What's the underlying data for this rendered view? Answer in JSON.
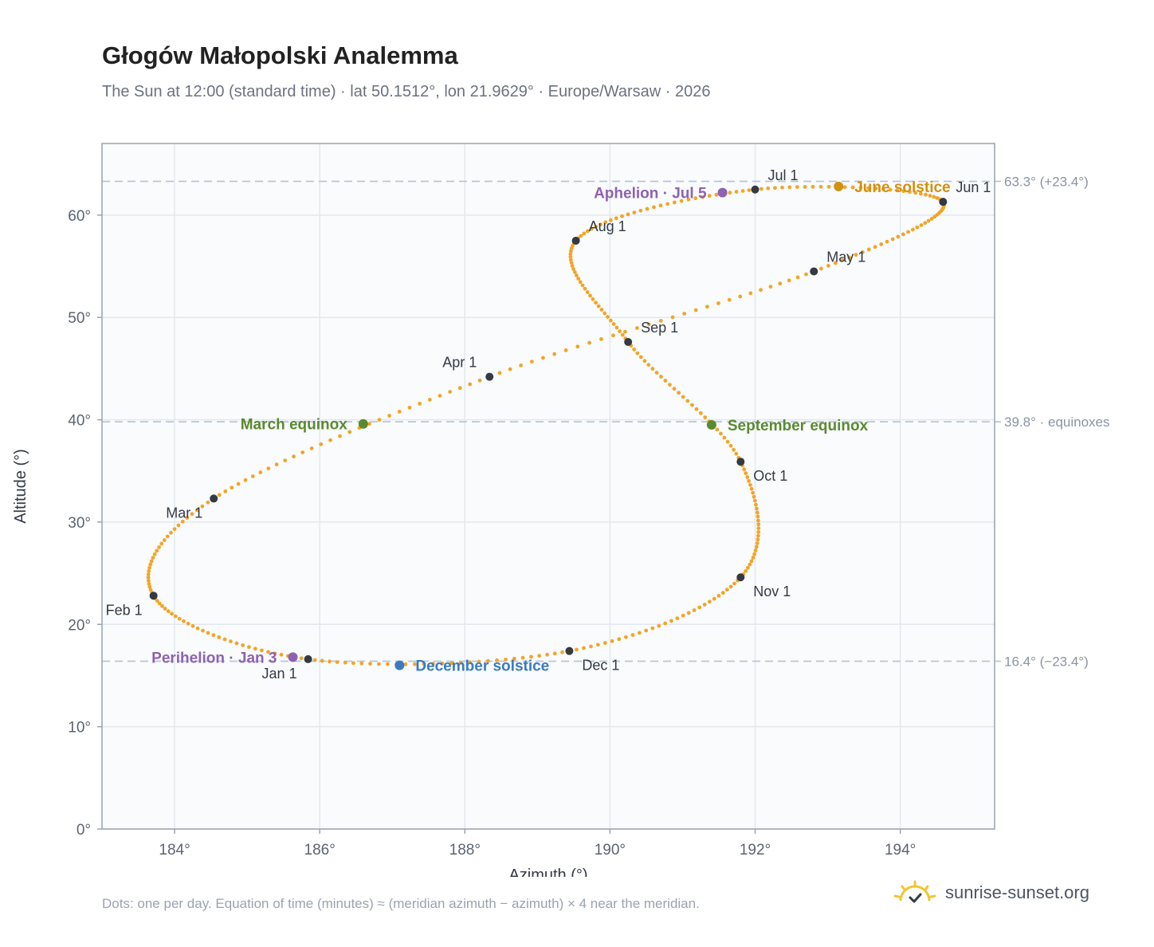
{
  "title": "Głogów Małopolski Analemma",
  "subtitle": "The Sun at 12:00 (standard time) · lat 50.1512°, lon 21.9629° · Europe/Warsaw · 2026",
  "footnote": "Dots: one per day. Equation of time (minutes) ≈ (meridian azimuth − azimuth) × 4 near the meridian.",
  "brand": {
    "text": "sunrise-sunset.org",
    "icon": "sun-logo-icon"
  },
  "colors": {
    "path": "#f2a528",
    "month_marker": "#333a44",
    "solstice_june": "#d4900f",
    "solstice_december": "#3a7bc0",
    "equinox": "#5a8a2f",
    "apsis": "#8e62b1",
    "reference_line": "#b9c6d4",
    "grid": "#e3e8ee",
    "plot_bg": "#f9fbfd",
    "frame": "#9aa3af"
  },
  "chart_data": {
    "type": "scatter",
    "title": "Głogów Małopolski Analemma",
    "xlabel": "Azimuth (°)",
    "ylabel": "Altitude (°)",
    "xlim": [
      183,
      195.3
    ],
    "ylim": [
      0,
      67
    ],
    "x_ticks": [
      {
        "value": 184,
        "label": "184°"
      },
      {
        "value": 186,
        "label": "186°"
      },
      {
        "value": 188,
        "label": "188°"
      },
      {
        "value": 190,
        "label": "190°"
      },
      {
        "value": 192,
        "label": "192°"
      },
      {
        "value": 194,
        "label": "194°"
      }
    ],
    "y_ticks": [
      {
        "value": 0,
        "label": "0°"
      },
      {
        "value": 10,
        "label": "10°"
      },
      {
        "value": 20,
        "label": "20°"
      },
      {
        "value": 30,
        "label": "30°"
      },
      {
        "value": 40,
        "label": "40°"
      },
      {
        "value": 50,
        "label": "50°"
      },
      {
        "value": 60,
        "label": "60°"
      }
    ],
    "grid": true,
    "reference_lines": [
      {
        "y": 63.3,
        "label": "63.3° (+23.4°)"
      },
      {
        "y": 39.8,
        "label": "39.8° · equinoxes"
      },
      {
        "y": 16.4,
        "label": "16.4° (−23.4°)"
      }
    ],
    "path_anchors": [
      {
        "date": "Jan 1",
        "x": 185.84,
        "y": 16.6
      },
      {
        "date": "Feb 1",
        "x": 183.71,
        "y": 22.8
      },
      {
        "date": "Mar 1",
        "x": 184.54,
        "y": 32.3
      },
      {
        "date": "Apr 1",
        "x": 188.34,
        "y": 44.2
      },
      {
        "date": "May 1",
        "x": 192.81,
        "y": 54.5
      },
      {
        "date": "Jun 1",
        "x": 194.59,
        "y": 61.3
      },
      {
        "date": "Jul 1",
        "x": 192.0,
        "y": 62.5
      },
      {
        "date": "Aug 1",
        "x": 189.53,
        "y": 57.5
      },
      {
        "date": "Sep 1",
        "x": 190.25,
        "y": 47.6
      },
      {
        "date": "Oct 1",
        "x": 191.8,
        "y": 35.9
      },
      {
        "date": "Nov 1",
        "x": 191.8,
        "y": 24.6
      },
      {
        "date": "Dec 1",
        "x": 189.44,
        "y": 17.4
      }
    ],
    "month_markers": [
      {
        "label": "Jan 1",
        "x": 185.84,
        "y": 16.6,
        "pos": "below-left"
      },
      {
        "label": "Feb 1",
        "x": 183.71,
        "y": 22.8,
        "pos": "below-left"
      },
      {
        "label": "Mar 1",
        "x": 184.54,
        "y": 32.3,
        "pos": "below-left"
      },
      {
        "label": "Apr 1",
        "x": 188.34,
        "y": 44.2,
        "pos": "above-left"
      },
      {
        "label": "May 1",
        "x": 192.81,
        "y": 54.5,
        "pos": "above-right"
      },
      {
        "label": "Jun 1",
        "x": 194.59,
        "y": 61.3,
        "pos": "above-right"
      },
      {
        "label": "Jul 1",
        "x": 192.0,
        "y": 62.5,
        "pos": "above-right"
      },
      {
        "label": "Aug 1",
        "x": 189.53,
        "y": 57.5,
        "pos": "above-right"
      },
      {
        "label": "Sep 1",
        "x": 190.25,
        "y": 47.6,
        "pos": "above-right"
      },
      {
        "label": "Oct 1",
        "x": 191.8,
        "y": 35.9,
        "pos": "below-right"
      },
      {
        "label": "Nov 1",
        "x": 191.8,
        "y": 24.6,
        "pos": "below-right"
      },
      {
        "label": "Dec 1",
        "x": 189.44,
        "y": 17.4,
        "pos": "below-right"
      }
    ],
    "special_points": [
      {
        "label": "June solstice",
        "x": 193.15,
        "y": 62.8,
        "color_key": "solstice_june",
        "pos": "right"
      },
      {
        "label": "December solstice",
        "x": 187.1,
        "y": 16.0,
        "color_key": "solstice_december",
        "pos": "right"
      },
      {
        "label": "March equinox",
        "x": 186.6,
        "y": 39.6,
        "color_key": "equinox",
        "pos": "left"
      },
      {
        "label": "September equinox",
        "x": 191.4,
        "y": 39.5,
        "color_key": "equinox",
        "pos": "right"
      },
      {
        "label": "Aphelion · Jul 5",
        "x": 191.55,
        "y": 62.2,
        "color_key": "apsis",
        "pos": "left"
      },
      {
        "label": "Perihelion · Jan 3",
        "x": 185.63,
        "y": 16.8,
        "color_key": "apsis",
        "pos": "left"
      }
    ]
  }
}
